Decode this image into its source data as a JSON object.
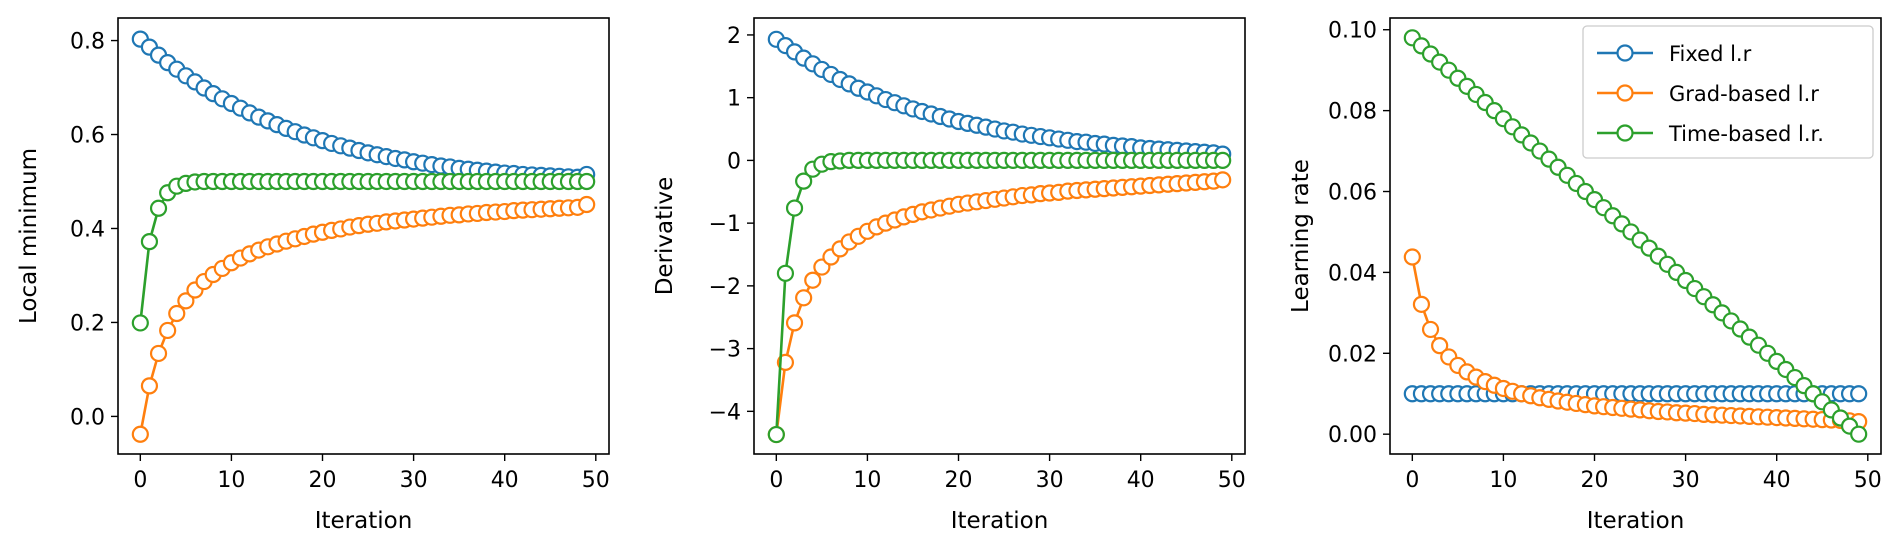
{
  "chart_data": [
    {
      "type": "line",
      "xlabel": "Iteration",
      "ylabel": "Local minimum",
      "xlim": [
        -2.45,
        51.45
      ],
      "ylim": [
        -0.08,
        0.848
      ],
      "xticks": [
        0,
        10,
        20,
        30,
        40,
        50
      ],
      "yticks": [
        0.0,
        0.2,
        0.4,
        0.6,
        0.8
      ],
      "ytick_labels": [
        "0.0",
        "0.2",
        "0.4",
        "0.6",
        "0.8"
      ],
      "xtick_labels": [
        "0",
        "10",
        "20",
        "30",
        "40",
        "50"
      ],
      "grid": false,
      "marker": "open-circle",
      "series": [
        {
          "color": "#1f77b4",
          "values": [
            0.803,
            0.786,
            0.769,
            0.753,
            0.739,
            0.725,
            0.712,
            0.699,
            0.687,
            0.676,
            0.666,
            0.656,
            0.646,
            0.637,
            0.629,
            0.621,
            0.613,
            0.606,
            0.599,
            0.593,
            0.587,
            0.581,
            0.576,
            0.571,
            0.566,
            0.561,
            0.557,
            0.553,
            0.549,
            0.546,
            0.542,
            0.539,
            0.536,
            0.533,
            0.531,
            0.528,
            0.526,
            0.524,
            0.522,
            0.52,
            0.518,
            0.517,
            0.515,
            0.514,
            0.513,
            0.512,
            0.511,
            0.51,
            0.509,
            0.515
          ]
        },
        {
          "color": "#ff7f0e",
          "values": [
            -0.038,
            0.065,
            0.134,
            0.183,
            0.219,
            0.246,
            0.269,
            0.287,
            0.302,
            0.315,
            0.327,
            0.337,
            0.346,
            0.354,
            0.361,
            0.367,
            0.373,
            0.378,
            0.383,
            0.388,
            0.392,
            0.396,
            0.399,
            0.403,
            0.406,
            0.409,
            0.411,
            0.414,
            0.416,
            0.418,
            0.42,
            0.422,
            0.424,
            0.426,
            0.428,
            0.429,
            0.431,
            0.432,
            0.434,
            0.435,
            0.436,
            0.438,
            0.439,
            0.44,
            0.441,
            0.442,
            0.443,
            0.444,
            0.445,
            0.451
          ]
        },
        {
          "color": "#2ca02c",
          "values": [
            0.199,
            0.372,
            0.443,
            0.476,
            0.49,
            0.496,
            0.499,
            0.5,
            0.5,
            0.5,
            0.5,
            0.5,
            0.5,
            0.5,
            0.5,
            0.5,
            0.5,
            0.5,
            0.5,
            0.5,
            0.5,
            0.5,
            0.5,
            0.5,
            0.5,
            0.5,
            0.5,
            0.5,
            0.5,
            0.5,
            0.5,
            0.5,
            0.5,
            0.5,
            0.5,
            0.5,
            0.5,
            0.5,
            0.5,
            0.5,
            0.5,
            0.5,
            0.5,
            0.5,
            0.5,
            0.5,
            0.5,
            0.5,
            0.5,
            0.5
          ]
        }
      ]
    },
    {
      "type": "line",
      "xlabel": "Iteration",
      "ylabel": "Derivative",
      "xlim": [
        -2.45,
        51.45
      ],
      "ylim": [
        -4.68,
        2.27
      ],
      "xticks": [
        0,
        10,
        20,
        30,
        40,
        50
      ],
      "yticks": [
        -4,
        -3,
        -2,
        -1,
        0,
        1,
        2
      ],
      "ytick_labels": [
        "−4",
        "−3",
        "−2",
        "−1",
        "0",
        "1",
        "2"
      ],
      "xtick_labels": [
        "0",
        "10",
        "20",
        "30",
        "40",
        "50"
      ],
      "grid": false,
      "marker": "open-circle",
      "series": [
        {
          "color": "#1f77b4",
          "values": [
            1.93,
            1.83,
            1.73,
            1.63,
            1.54,
            1.45,
            1.37,
            1.29,
            1.22,
            1.15,
            1.09,
            1.03,
            0.97,
            0.92,
            0.87,
            0.82,
            0.78,
            0.74,
            0.7,
            0.66,
            0.62,
            0.59,
            0.56,
            0.53,
            0.5,
            0.47,
            0.45,
            0.42,
            0.4,
            0.38,
            0.36,
            0.34,
            0.32,
            0.3,
            0.29,
            0.27,
            0.26,
            0.24,
            0.23,
            0.22,
            0.2,
            0.19,
            0.18,
            0.17,
            0.16,
            0.15,
            0.14,
            0.13,
            0.12,
            0.1
          ]
        },
        {
          "color": "#ff7f0e",
          "values": [
            -4.37,
            -3.22,
            -2.59,
            -2.19,
            -1.91,
            -1.7,
            -1.54,
            -1.41,
            -1.3,
            -1.21,
            -1.13,
            -1.06,
            -1.0,
            -0.95,
            -0.9,
            -0.86,
            -0.82,
            -0.79,
            -0.76,
            -0.73,
            -0.7,
            -0.68,
            -0.66,
            -0.64,
            -0.62,
            -0.6,
            -0.58,
            -0.56,
            -0.55,
            -0.53,
            -0.52,
            -0.51,
            -0.49,
            -0.48,
            -0.47,
            -0.46,
            -0.45,
            -0.44,
            -0.43,
            -0.42,
            -0.41,
            -0.4,
            -0.39,
            -0.38,
            -0.37,
            -0.36,
            -0.35,
            -0.34,
            -0.33,
            -0.31
          ]
        },
        {
          "color": "#2ca02c",
          "values": [
            -4.37,
            -1.8,
            -0.76,
            -0.33,
            -0.14,
            -0.06,
            -0.02,
            -0.01,
            0.0,
            0.0,
            0.0,
            0.0,
            0.0,
            0.0,
            0.0,
            0.0,
            0.0,
            0.0,
            0.0,
            0.0,
            0.0,
            0.0,
            0.0,
            0.0,
            0.0,
            0.0,
            0.0,
            0.0,
            0.0,
            0.0,
            0.0,
            0.0,
            0.0,
            0.0,
            0.0,
            0.0,
            0.0,
            0.0,
            0.0,
            0.0,
            0.0,
            0.0,
            0.0,
            0.0,
            0.0,
            0.0,
            0.0,
            0.0,
            0.0,
            0.0
          ]
        }
      ]
    },
    {
      "type": "line",
      "xlabel": "Iteration",
      "ylabel": "Learning rate",
      "xlim": [
        -2.45,
        51.45
      ],
      "ylim": [
        -0.0049,
        0.1029
      ],
      "xticks": [
        0,
        10,
        20,
        30,
        40,
        50
      ],
      "yticks": [
        0.0,
        0.02,
        0.04,
        0.06,
        0.08,
        0.1
      ],
      "ytick_labels": [
        "0.00",
        "0.02",
        "0.04",
        "0.06",
        "0.08",
        "0.10"
      ],
      "xtick_labels": [
        "0",
        "10",
        "20",
        "30",
        "40",
        "50"
      ],
      "grid": false,
      "marker": "open-circle",
      "legend_position": "top-right",
      "series": [
        {
          "name": "Fixed l.r",
          "color": "#1f77b4",
          "values": [
            0.01,
            0.01,
            0.01,
            0.01,
            0.01,
            0.01,
            0.01,
            0.01,
            0.01,
            0.01,
            0.01,
            0.01,
            0.01,
            0.01,
            0.01,
            0.01,
            0.01,
            0.01,
            0.01,
            0.01,
            0.01,
            0.01,
            0.01,
            0.01,
            0.01,
            0.01,
            0.01,
            0.01,
            0.01,
            0.01,
            0.01,
            0.01,
            0.01,
            0.01,
            0.01,
            0.01,
            0.01,
            0.01,
            0.01,
            0.01,
            0.01,
            0.01,
            0.01,
            0.01,
            0.01,
            0.01,
            0.01,
            0.01,
            0.01,
            0.01
          ]
        },
        {
          "name": "Grad-based l.r",
          "color": "#ff7f0e",
          "values": [
            0.0438,
            0.0321,
            0.0259,
            0.0219,
            0.0191,
            0.017,
            0.0154,
            0.0141,
            0.013,
            0.0121,
            0.0113,
            0.0106,
            0.01,
            0.0095,
            0.009,
            0.0086,
            0.0082,
            0.0079,
            0.0076,
            0.0073,
            0.007,
            0.0068,
            0.0066,
            0.0064,
            0.0062,
            0.006,
            0.0058,
            0.0056,
            0.0055,
            0.0053,
            0.0052,
            0.0051,
            0.0049,
            0.0048,
            0.0047,
            0.0046,
            0.0045,
            0.0044,
            0.0043,
            0.0042,
            0.0041,
            0.004,
            0.0039,
            0.0038,
            0.0037,
            0.0036,
            0.0035,
            0.0034,
            0.0033,
            0.0031
          ]
        },
        {
          "name": "Time-based l.r.",
          "color": "#2ca02c",
          "values": [
            0.098,
            0.096,
            0.094,
            0.092,
            0.09,
            0.088,
            0.086,
            0.084,
            0.082,
            0.08,
            0.078,
            0.076,
            0.074,
            0.072,
            0.07,
            0.068,
            0.066,
            0.064,
            0.062,
            0.06,
            0.058,
            0.056,
            0.054,
            0.052,
            0.05,
            0.048,
            0.046,
            0.044,
            0.042,
            0.04,
            0.038,
            0.036,
            0.034,
            0.032,
            0.03,
            0.028,
            0.026,
            0.024,
            0.022,
            0.02,
            0.018,
            0.016,
            0.014,
            0.012,
            0.01,
            0.008,
            0.006,
            0.004,
            0.002,
            0.0
          ]
        }
      ]
    }
  ]
}
